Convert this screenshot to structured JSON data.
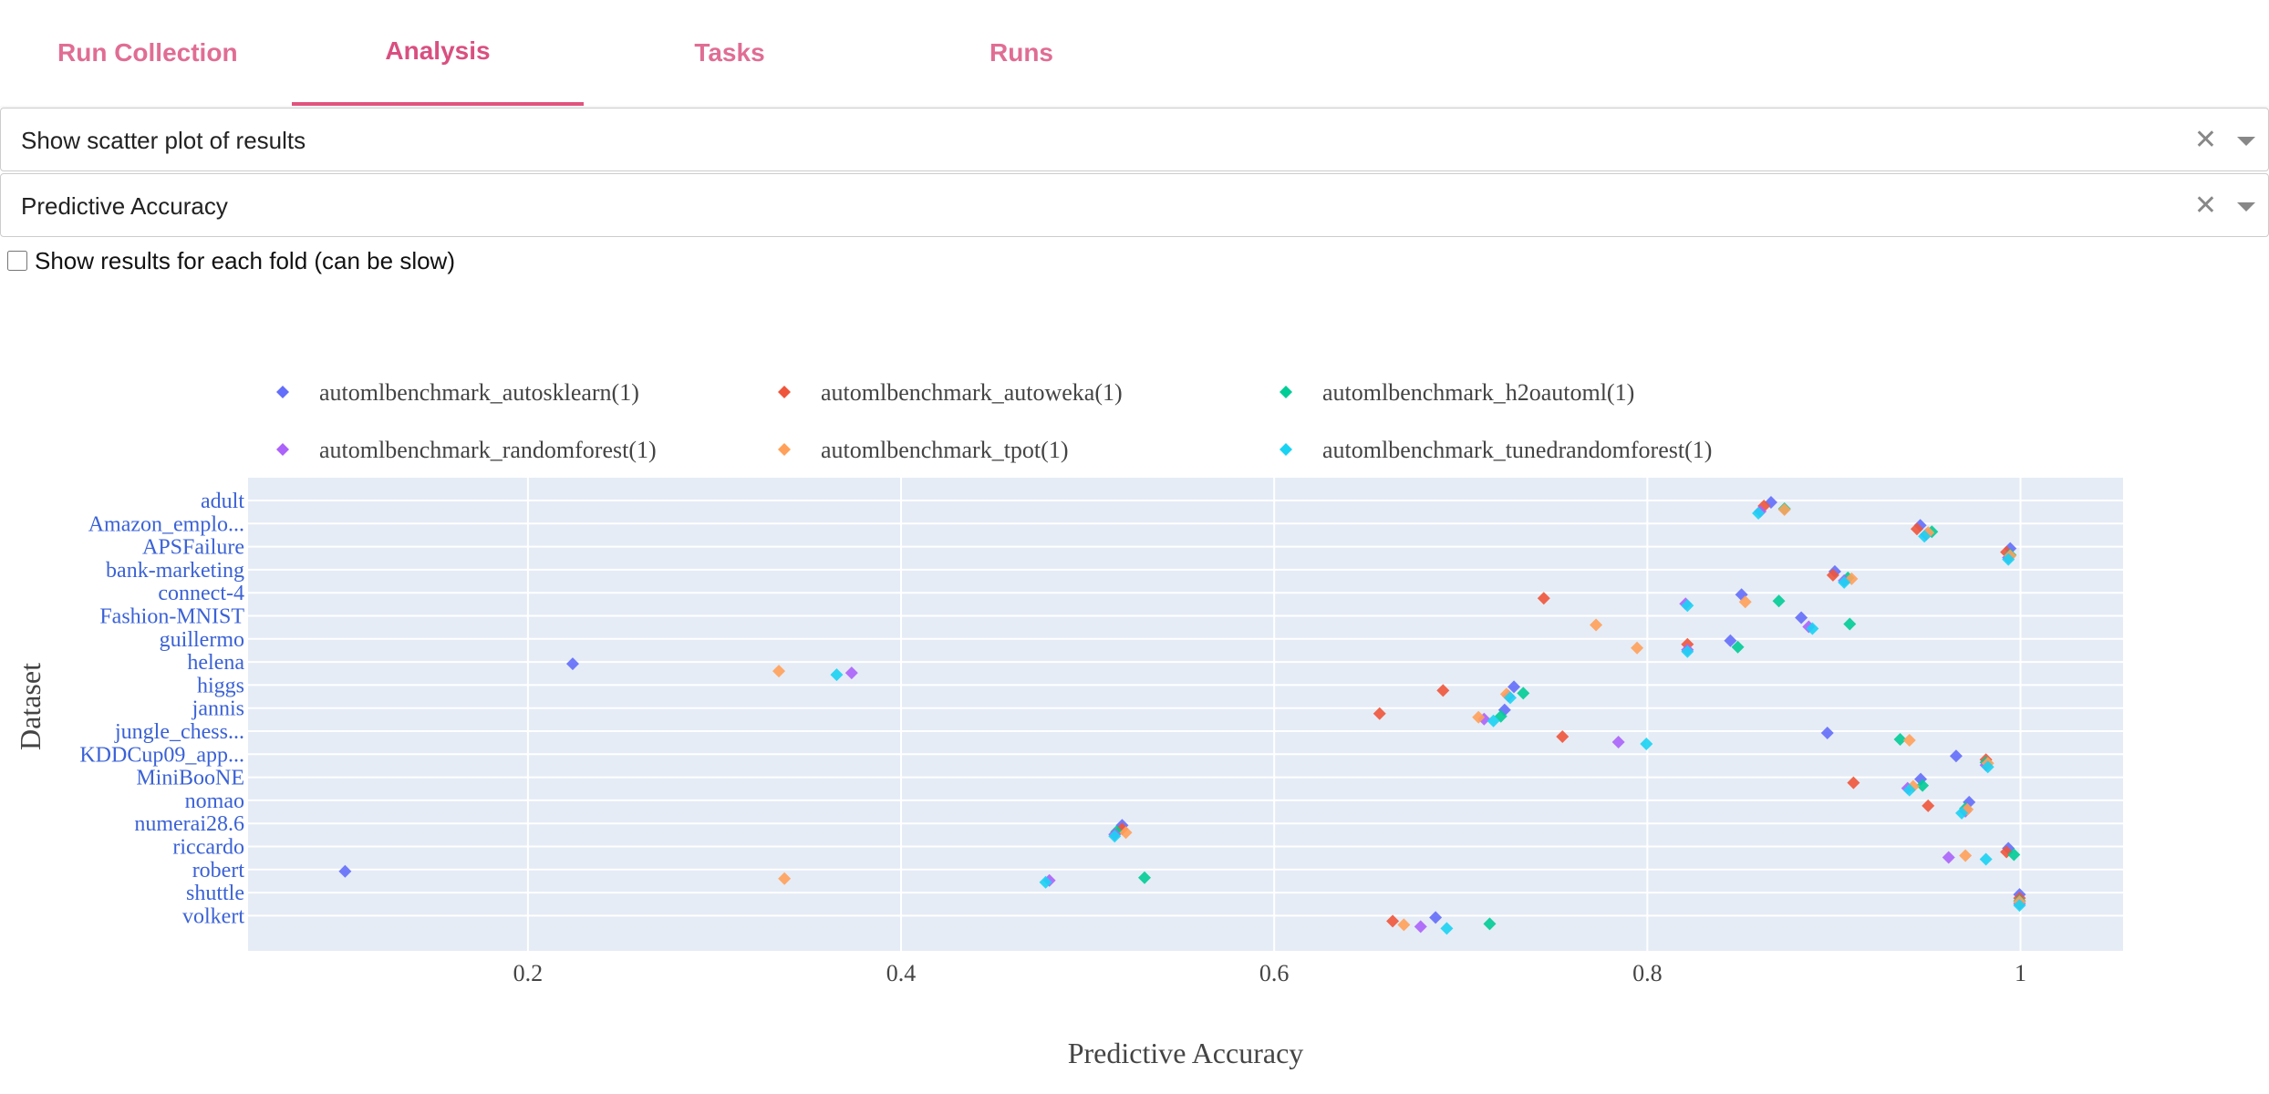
{
  "tabs": [
    {
      "label": "Run Collection",
      "active": false
    },
    {
      "label": "Analysis",
      "active": true
    },
    {
      "label": "Tasks",
      "active": false
    },
    {
      "label": "Runs",
      "active": false
    }
  ],
  "plot_select": {
    "value": "Show scatter plot of results",
    "clear": "✕"
  },
  "metric_select": {
    "value": "Predictive Accuracy",
    "clear": "✕"
  },
  "fold_checkbox": {
    "label": "Show results for each fold (can be slow)",
    "checked": false
  },
  "chart_data": {
    "type": "scatter",
    "xlabel": "Predictive Accuracy",
    "ylabel": "Dataset",
    "xlim": [
      0.05,
      1.055
    ],
    "x_ticks": [
      "0.2",
      "0.4",
      "0.6",
      "0.8",
      "1"
    ],
    "grid": true,
    "legend_placement": "top",
    "categories": [
      "adult",
      "Amazon_emplo...",
      "APSFailure",
      "bank-marketing",
      "connect-4",
      "Fashion-MNIST",
      "guillermo",
      "helena",
      "higgs",
      "jannis",
      "jungle_chess...",
      "KDDCup09_app...",
      "MiniBooNE",
      "nomao",
      "numerai28.6",
      "riccardo",
      "robert",
      "shuttle",
      "volkert"
    ],
    "series": [
      {
        "name": "automlbenchmark_autosklearn(1)",
        "color": "#636efa",
        "values": [
          0.8663,
          0.9463,
          0.9945,
          0.9005,
          0.8505,
          0.8825,
          0.8445,
          0.224,
          0.7285,
          0.7235,
          0.8965,
          0.9655,
          0.9465,
          0.9725,
          0.5185,
          0.9935,
          0.102,
          0.9995,
          0.6865
        ]
      },
      {
        "name": "automlbenchmark_autoweka(1)",
        "color": "#ef553b",
        "values": [
          0.8625,
          0.9445,
          0.9925,
          0.8995,
          0.7445,
          null,
          0.8215,
          null,
          0.6905,
          0.6565,
          0.7545,
          0.9815,
          0.9105,
          0.9505,
          0.5185,
          0.9925,
          null,
          0.9995,
          0.6635
        ]
      },
      {
        "name": "automlbenchmark_h2oautoml(1)",
        "color": "#00cc96",
        "values": [
          0.8735,
          0.9525,
          0.9945,
          0.9075,
          0.8705,
          0.9085,
          0.8485,
          null,
          0.7335,
          0.7215,
          0.9355,
          0.9815,
          0.9475,
          0.9705,
          0.5155,
          0.9965,
          0.5305,
          0.9995,
          0.7155
        ]
      },
      {
        "name": "automlbenchmark_randomforest(1)",
        "color": "#ab63fa",
        "values": [
          0.8605,
          0.9495,
          0.9935,
          0.9055,
          0.8205,
          0.8865,
          0.8215,
          0.3735,
          0.7255,
          0.7125,
          0.7845,
          0.9815,
          0.9395,
          0.9705,
          0.5145,
          0.9615,
          0.4795,
          0.9995,
          0.6785
        ]
      },
      {
        "name": "automlbenchmark_tpot(1)",
        "color": "#ffa15a",
        "values": [
          0.8735,
          0.9505,
          0.9945,
          0.9095,
          0.8525,
          0.7725,
          0.7945,
          0.3345,
          0.7245,
          0.7095,
          0.9405,
          0.9825,
          0.9425,
          0.9715,
          0.5205,
          0.9705,
          0.3375,
          0.9995,
          0.6695
        ]
      },
      {
        "name": "automlbenchmark_tunedrandomforest(1)",
        "color": "#19d3f3",
        "values": [
          0.8595,
          0.9485,
          0.9935,
          0.9055,
          0.8215,
          0.8885,
          0.8215,
          0.3655,
          0.7265,
          0.7175,
          0.7995,
          0.9825,
          0.9405,
          0.9685,
          0.5145,
          0.9815,
          0.4775,
          0.9995,
          0.6925
        ]
      }
    ]
  }
}
